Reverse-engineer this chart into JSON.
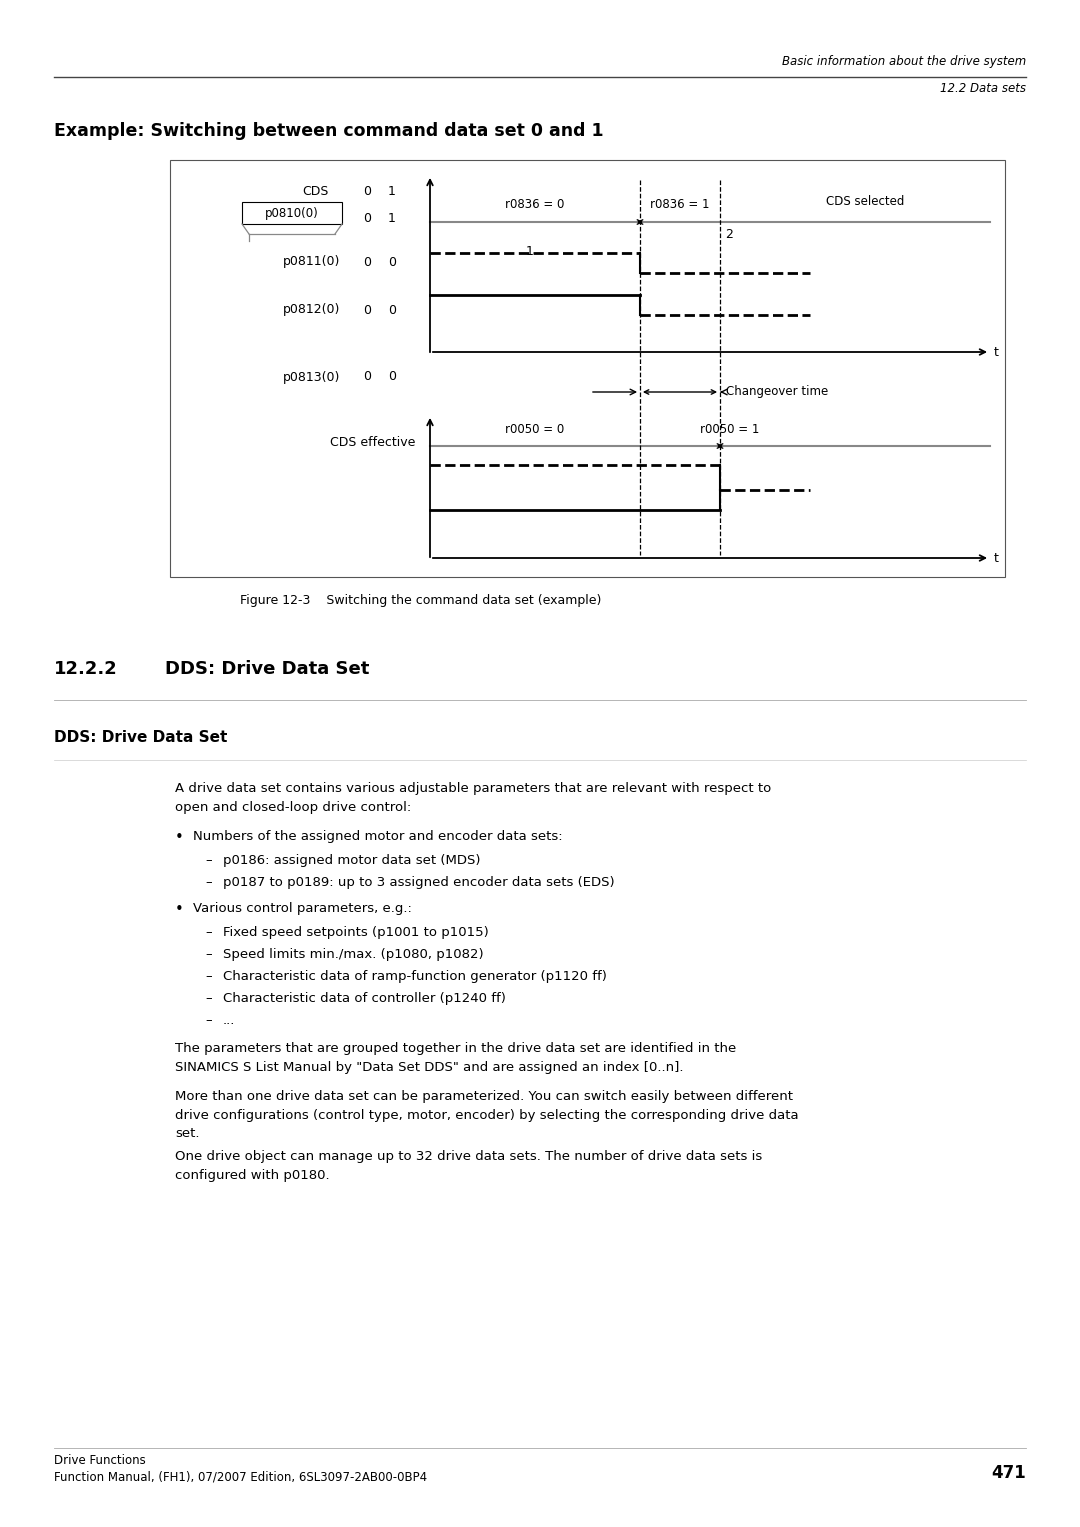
{
  "page_title_line1": "Basic information about the drive system",
  "page_title_line2": "12.2 Data sets",
  "section_title": "Example: Switching between command data set 0 and 1",
  "figure_caption": "Figure 12-3    Switching the command data set (example)",
  "section_number": "12.2.2",
  "section_heading": "DDS: Drive Data Set",
  "subsection_heading": "DDS: Drive Data Set",
  "body_text_1": "A drive data set contains various adjustable parameters that are relevant with respect to\nopen and closed-loop drive control:",
  "bullet1": "Numbers of the assigned motor and encoder data sets:",
  "sub1a": "p0186: assigned motor data set (MDS)",
  "sub1b": "p0187 to p0189: up to 3 assigned encoder data sets (EDS)",
  "bullet2": "Various control parameters, e.g.:",
  "sub2a": "Fixed speed setpoints (p1001 to p1015)",
  "sub2b": "Speed limits min./max. (p1080, p1082)",
  "sub2c": "Characteristic data of ramp-function generator (p1120 ff)",
  "sub2d": "Characteristic data of controller (p1240 ff)",
  "sub2e": "...",
  "body_text_2": "The parameters that are grouped together in the drive data set are identified in the\nSINAMICS S List Manual by \"Data Set DDS\" and are assigned an index [0..n].",
  "body_text_3": "More than one drive data set can be parameterized. You can switch easily between different\ndrive configurations (control type, motor, encoder) by selecting the corresponding drive data\nset.",
  "body_text_4": "One drive object can manage up to 32 drive data sets. The number of drive data sets is\nconfigured with p0180.",
  "footer_line1": "Drive Functions",
  "footer_line2": "Function Manual, (FH1), 07/2007 Edition, 6SL3097-2AB00-0BP4",
  "footer_page": "471"
}
